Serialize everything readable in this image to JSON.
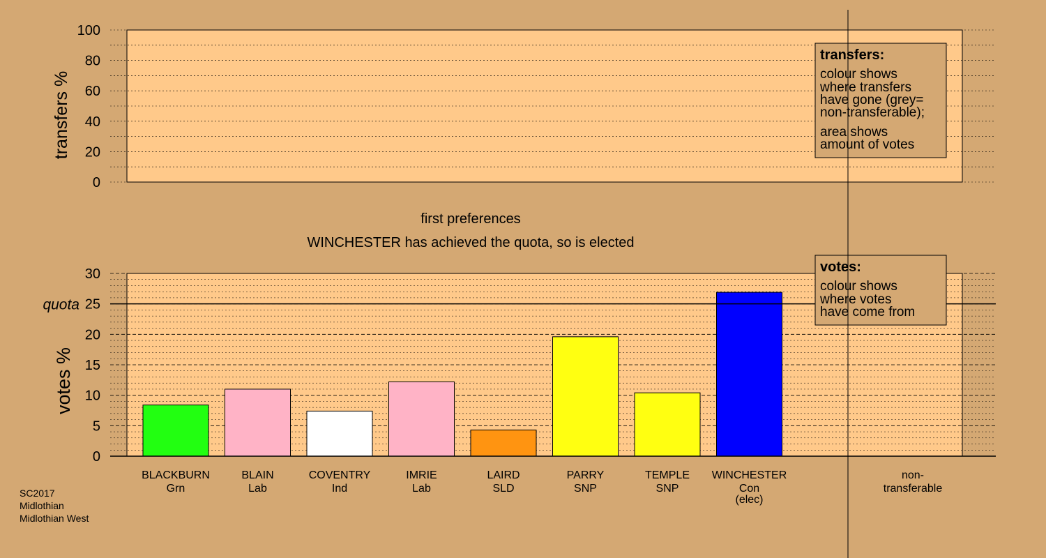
{
  "heading": "first preferences",
  "status_line": "WINCHESTER has achieved the quota, so is elected",
  "footer": [
    "SC2017",
    "Midlothian",
    "Midlothian West"
  ],
  "transfers_panel": {
    "ylabel": "transfers %",
    "ylim": [
      0,
      100
    ],
    "ticks": [
      "0",
      "20",
      "40",
      "60",
      "80",
      "100"
    ],
    "legend": {
      "title": "transfers:",
      "lines1": [
        "colour shows",
        "where transfers",
        "have gone (grey=",
        "non-transferable);"
      ],
      "lines2": [
        "area shows",
        "amount of votes"
      ]
    }
  },
  "votes_panel": {
    "ylabel": "votes %",
    "ylim": [
      0,
      30
    ],
    "ticks": [
      "0",
      "5",
      "10",
      "15",
      "20",
      "25",
      "30"
    ],
    "quota_label": "quota",
    "legend": {
      "title": "votes:",
      "lines1": [
        "colour shows",
        "where votes",
        "have come from"
      ]
    }
  },
  "chart_data": {
    "type": "bar",
    "quota": 25,
    "categories": [
      {
        "name": "BLACKBURN",
        "party": "Grn",
        "note": ""
      },
      {
        "name": "BLAIN",
        "party": "Lab",
        "note": ""
      },
      {
        "name": "COVENTRY",
        "party": "Ind",
        "note": ""
      },
      {
        "name": "IMRIE",
        "party": "Lab",
        "note": ""
      },
      {
        "name": "LAIRD",
        "party": "SLD",
        "note": ""
      },
      {
        "name": "PARRY",
        "party": "SNP",
        "note": ""
      },
      {
        "name": "TEMPLE",
        "party": "SNP",
        "note": ""
      },
      {
        "name": "WINCHESTER",
        "party": "Con",
        "note": "(elec)"
      }
    ],
    "values": [
      8.4,
      11.0,
      7.4,
      12.2,
      4.3,
      19.6,
      10.4,
      26.9
    ],
    "colors": [
      "#22ff11",
      "#ffb3c6",
      "#ffffff",
      "#ffb3c6",
      "#ff9411",
      "#ffff11",
      "#ffff11",
      "#0000ff"
    ],
    "extra_category": {
      "line1": "non-",
      "line2": "transferable"
    }
  }
}
